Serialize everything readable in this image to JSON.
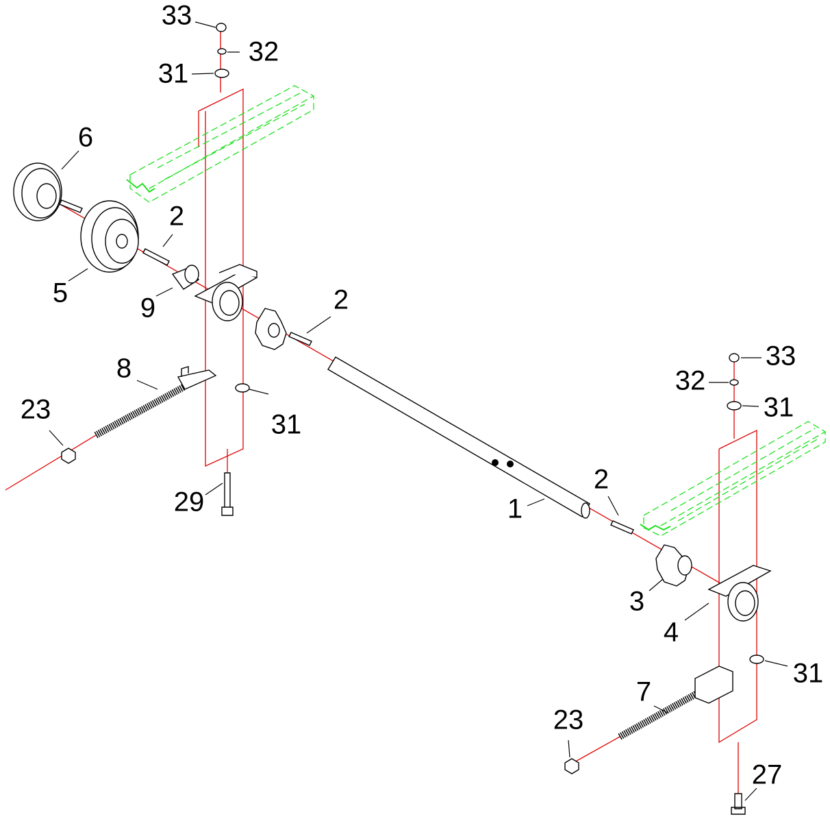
{
  "callouts": [
    "33",
    "32",
    "31",
    "6",
    "2",
    "5",
    "9",
    "2",
    "8",
    "23",
    "31",
    "29",
    "1",
    "2",
    "33",
    "32",
    "31",
    "3",
    "4",
    "31",
    "7",
    "23",
    "27"
  ]
}
